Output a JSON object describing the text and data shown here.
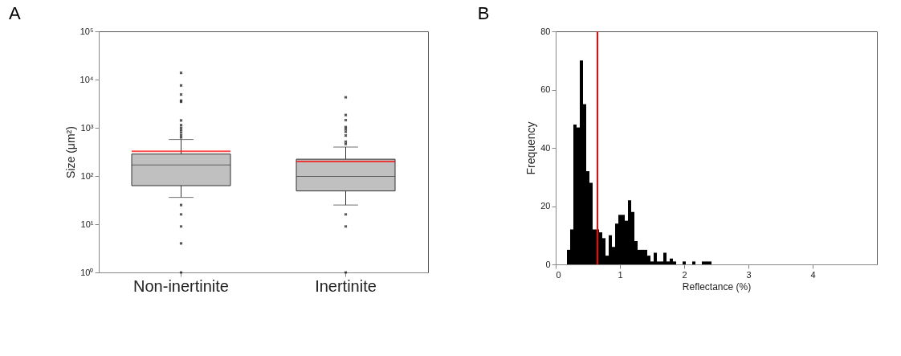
{
  "chart_data": [
    {
      "type": "box",
      "title": "A",
      "ylabel": "Size (μm²)",
      "categories": [
        "Non-inertinite",
        "Inertinite"
      ],
      "log": true,
      "ylim": [
        1,
        100000
      ],
      "yticks": [
        {
          "value": 1,
          "label": "10⁰"
        },
        {
          "value": 10,
          "label": "10¹"
        },
        {
          "value": 100,
          "label": "10²"
        },
        {
          "value": 1000,
          "label": "10³"
        },
        {
          "value": 10000,
          "label": "10⁴"
        },
        {
          "value": 100000,
          "label": "10⁵"
        }
      ],
      "series": [
        {
          "color": "#c0c0c0",
          "boxes": [
            {
              "low": 36,
              "q1": 63,
              "median": 169,
              "q3": 285,
              "high": 571,
              "mean": 324,
              "outliers": [
                13800,
                7550,
                4890,
                3680,
                3450,
                1420,
                1140,
                1000,
                900,
                800,
                700,
                630,
                25,
                16,
                9,
                4,
                1
              ]
            },
            {
              "low": 25,
              "q1": 49,
              "median": 98,
              "q3": 223,
              "high": 398,
              "mean": 199,
              "outliers": [
                4290,
                1840,
                1440,
                1040,
                940,
                830,
                690,
                515,
                460,
                16,
                9,
                1
              ]
            }
          ]
        }
      ],
      "grid": false
    },
    {
      "type": "histogram",
      "title": "B",
      "xlabel": "Reflectance (%)",
      "ylabel": "Frequency",
      "xlim": [
        0,
        5
      ],
      "xticks": [
        0,
        1,
        2,
        3,
        4
      ],
      "ylim": [
        0,
        80
      ],
      "yticks": [
        0,
        20,
        40,
        60,
        80
      ],
      "bins": [
        0.175,
        0.225,
        0.275,
        0.325,
        0.375,
        0.425,
        0.475,
        0.525,
        0.575,
        0.625,
        0.675,
        0.725,
        0.775,
        0.825,
        0.875,
        0.925,
        0.975,
        1.025,
        1.075,
        1.125,
        1.175,
        1.225,
        1.275,
        1.325,
        1.375,
        1.425,
        1.475,
        1.525,
        1.575,
        1.625,
        1.675,
        1.725,
        1.775,
        1.825,
        1.875,
        1.925,
        1.975,
        2.025,
        2.075,
        2.125,
        2.175,
        2.225,
        2.275,
        2.325,
        2.375,
        2.425
      ],
      "values": [
        5,
        12,
        48,
        47,
        70,
        55,
        32,
        28,
        12,
        12,
        11,
        9,
        3,
        10,
        6,
        14,
        17,
        17,
        15,
        22,
        18,
        8,
        5,
        5,
        5,
        3,
        1,
        4,
        1,
        1,
        4,
        1,
        2,
        1,
        0,
        0,
        1,
        0,
        0,
        1,
        0,
        0,
        1,
        1,
        1
      ],
      "color": "#000000",
      "grid": false,
      "ref_lines": [
        {
          "axis": "x",
          "value": 0.65,
          "color": "#ff0000"
        }
      ]
    }
  ]
}
